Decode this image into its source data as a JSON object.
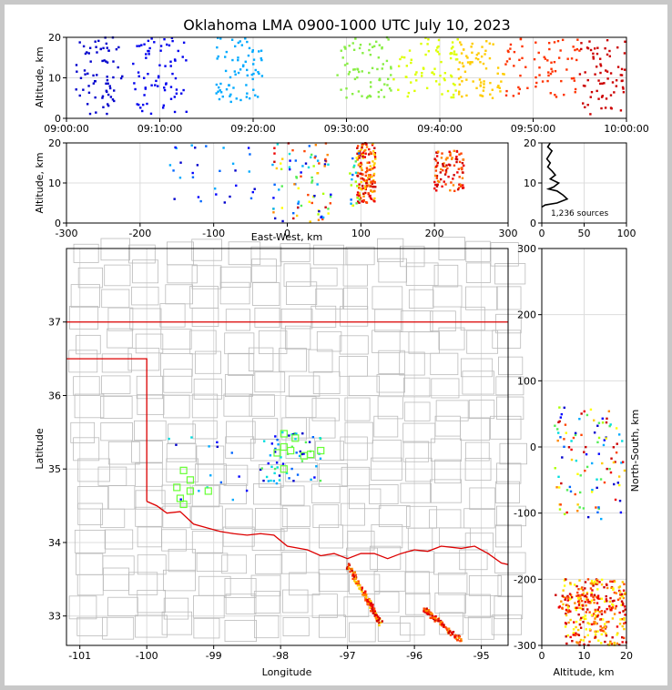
{
  "title": "Oklahoma LMA 0900-1000 UTC July 10, 2023",
  "colors": {
    "frame": "#000000",
    "grid": "#dddddd",
    "county": "#bbbbbb",
    "state_border": "#dd0000",
    "background": "#ffffff",
    "stations": "#66ff33",
    "histogram": "#000000"
  },
  "chart_data": [
    {
      "id": "time-height",
      "type": "scatter",
      "xlabel": "",
      "ylabel": "Altitude, km",
      "xlim": [
        "09:00:00",
        "10:00:00"
      ],
      "ylim": [
        0,
        20
      ],
      "xticks": [
        "09:00:00",
        "09:10:00",
        "09:20:00",
        "09:30:00",
        "09:40:00",
        "09:50:00",
        "10:00:00"
      ],
      "yticks": [
        0,
        10,
        20
      ],
      "color_by": "time (blue→red)",
      "clusters": [
        {
          "t_min": [
            1,
            6
          ],
          "alt_km": [
            1,
            20
          ],
          "color": "#0000cc"
        },
        {
          "t_min": [
            7,
            13
          ],
          "alt_km": [
            1,
            20
          ],
          "color": "#0000ee"
        },
        {
          "t_min": [
            16,
            21
          ],
          "alt_km": [
            4,
            20
          ],
          "color": "#00aaff"
        },
        {
          "t_min": [
            29,
            35
          ],
          "alt_km": [
            5,
            20
          ],
          "color": "#88ee44"
        },
        {
          "t_min": [
            35,
            42
          ],
          "alt_km": [
            5,
            20
          ],
          "color": "#ddff00"
        },
        {
          "t_min": [
            42,
            47
          ],
          "alt_km": [
            5,
            20
          ],
          "color": "#ffcc00"
        },
        {
          "t_min": [
            47,
            55
          ],
          "alt_km": [
            5,
            20
          ],
          "color": "#ff3300"
        },
        {
          "t_min": [
            55,
            60
          ],
          "alt_km": [
            1,
            20
          ],
          "color": "#cc0000"
        }
      ]
    },
    {
      "id": "ew-height",
      "type": "scatter",
      "xlabel": "East-West, km",
      "ylabel": "Altitude, km",
      "xlim": [
        -300,
        300
      ],
      "ylim": [
        0,
        20
      ],
      "xticks": [
        -300,
        -200,
        -100,
        0,
        100,
        200,
        300
      ],
      "yticks": [
        0,
        10,
        20
      ]
    },
    {
      "id": "alt-histogram",
      "type": "line",
      "xlim": [
        0,
        100
      ],
      "ylim": [
        0,
        20
      ],
      "xticks": [
        0,
        50,
        100
      ],
      "yticks": [
        0,
        10,
        20
      ],
      "annotation": "1,236 sources",
      "profile": [
        [
          0,
          4
        ],
        [
          4,
          4.5
        ],
        [
          18,
          5
        ],
        [
          30,
          6
        ],
        [
          25,
          7
        ],
        [
          18,
          8
        ],
        [
          8,
          8.5
        ],
        [
          14,
          9
        ],
        [
          20,
          10
        ],
        [
          10,
          11
        ],
        [
          16,
          12
        ],
        [
          12,
          13
        ],
        [
          7,
          14
        ],
        [
          10,
          15
        ],
        [
          6,
          16
        ],
        [
          9,
          17
        ],
        [
          12,
          18
        ],
        [
          7,
          19
        ],
        [
          10,
          20
        ]
      ]
    },
    {
      "id": "plan-view",
      "type": "scatter",
      "xlabel": "Longitude",
      "ylabel": "Latitude",
      "xlim": [
        -101.2,
        -94.6
      ],
      "ylim": [
        32.6,
        38.0
      ],
      "xticks": [
        -101,
        -100,
        -99,
        -98,
        -97,
        -96,
        -95
      ],
      "yticks": [
        33,
        34,
        35,
        36,
        37
      ],
      "stations": [
        [
          -99.45,
          34.98
        ],
        [
          -99.35,
          34.85
        ],
        [
          -99.55,
          34.75
        ],
        [
          -99.35,
          34.7
        ],
        [
          -99.5,
          34.6
        ],
        [
          -99.45,
          34.52
        ],
        [
          -99.08,
          34.7
        ],
        [
          -97.95,
          35.48
        ],
        [
          -97.78,
          35.42
        ],
        [
          -97.95,
          35.3
        ],
        [
          -97.85,
          35.25
        ],
        [
          -97.65,
          35.18
        ],
        [
          -97.55,
          35.2
        ],
        [
          -97.4,
          35.25
        ],
        [
          -97.95,
          35.0
        ],
        [
          -98.05,
          35.22
        ]
      ]
    },
    {
      "id": "ns-height",
      "type": "scatter",
      "xlabel": "Altitude, km",
      "ylabel": "North-South, km",
      "xlim": [
        0,
        20
      ],
      "ylim": [
        -300,
        300
      ],
      "xticks": [
        0,
        10,
        20
      ],
      "yticks": [
        -300,
        -200,
        -100,
        0,
        100,
        200,
        300
      ]
    }
  ]
}
